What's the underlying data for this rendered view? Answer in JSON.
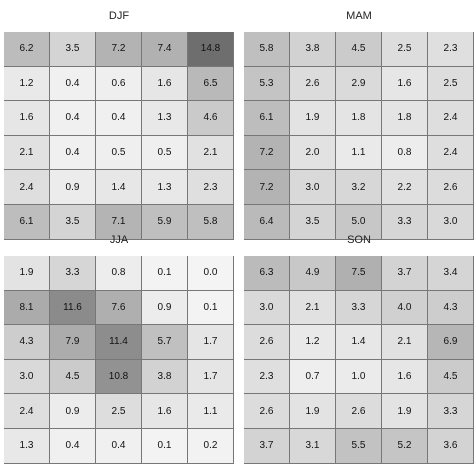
{
  "chart_data": [
    {
      "type": "heatmap",
      "title": "DJF",
      "rows": [
        [
          "6.2",
          "3.5",
          "7.2",
          "7.4",
          "14.8"
        ],
        [
          "1.2",
          "0.4",
          "0.6",
          "1.6",
          "6.5"
        ],
        [
          "1.6",
          "0.4",
          "0.4",
          "1.3",
          "4.6"
        ],
        [
          "2.1",
          "0.4",
          "0.5",
          "0.5",
          "2.1"
        ],
        [
          "2.4",
          "0.9",
          "1.4",
          "1.3",
          "2.3"
        ],
        [
          "6.1",
          "3.5",
          "7.1",
          "5.9",
          "5.8"
        ]
      ]
    },
    {
      "type": "heatmap",
      "title": "MAM",
      "rows": [
        [
          "5.8",
          "3.8",
          "4.5",
          "2.5",
          "2.3"
        ],
        [
          "5.3",
          "2.6",
          "2.9",
          "1.6",
          "2.5"
        ],
        [
          "6.1",
          "1.9",
          "1.8",
          "1.8",
          "2.4"
        ],
        [
          "7.2",
          "2.0",
          "1.1",
          "0.8",
          "2.4"
        ],
        [
          "7.2",
          "3.0",
          "3.2",
          "2.2",
          "2.6"
        ],
        [
          "6.4",
          "3.5",
          "5.0",
          "3.3",
          "3.0"
        ]
      ]
    },
    {
      "type": "heatmap",
      "title": "JJA",
      "rows": [
        [
          "1.9",
          "3.3",
          "0.8",
          "0.1",
          "0.0"
        ],
        [
          "8.1",
          "11.6",
          "7.6",
          "0.9",
          "0.1"
        ],
        [
          "4.3",
          "7.9",
          "11.4",
          "5.7",
          "1.7"
        ],
        [
          "3.0",
          "4.5",
          "10.8",
          "3.8",
          "1.7"
        ],
        [
          "2.4",
          "0.9",
          "2.5",
          "1.6",
          "1.1"
        ],
        [
          "1.3",
          "0.4",
          "0.4",
          "0.1",
          "0.2"
        ]
      ]
    },
    {
      "type": "heatmap",
      "title": "SON",
      "rows": [
        [
          "6.3",
          "4.9",
          "7.5",
          "3.7",
          "3.4"
        ],
        [
          "3.0",
          "2.1",
          "3.3",
          "4.0",
          "4.3"
        ],
        [
          "2.6",
          "1.2",
          "1.4",
          "2.1",
          "6.9"
        ],
        [
          "2.3",
          "0.7",
          "1.0",
          "1.6",
          "4.5"
        ],
        [
          "2.6",
          "1.9",
          "2.6",
          "1.9",
          "3.3"
        ],
        [
          "3.7",
          "3.1",
          "5.5",
          "5.2",
          "3.6"
        ]
      ]
    }
  ],
  "colors": {
    "scale_low": "#f4f4f4",
    "scale_high": "#6e6e6e",
    "grid_line": "#777777"
  }
}
